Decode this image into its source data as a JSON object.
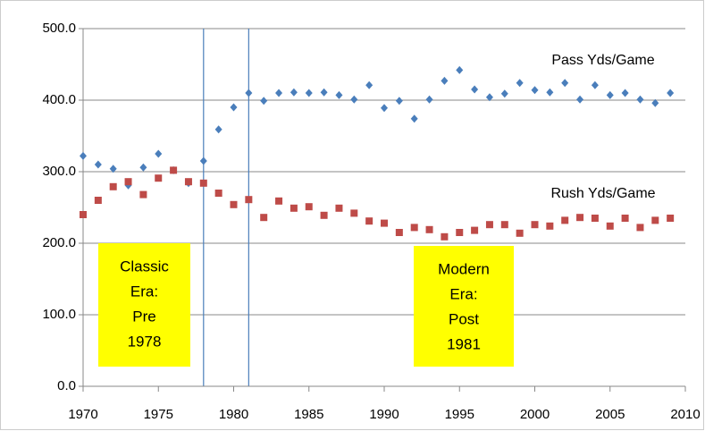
{
  "chart_data": {
    "type": "scatter",
    "x": [
      1970,
      1971,
      1972,
      1973,
      1974,
      1975,
      1976,
      1977,
      1978,
      1979,
      1980,
      1981,
      1982,
      1983,
      1984,
      1985,
      1986,
      1987,
      1988,
      1989,
      1990,
      1991,
      1992,
      1993,
      1994,
      1995,
      1996,
      1997,
      1998,
      1999,
      2000,
      2001,
      2002,
      2003,
      2004,
      2005,
      2006,
      2007,
      2008,
      2009
    ],
    "series": [
      {
        "name": "Pass Yds/Game",
        "color": "#4a7ebb",
        "marker": "diamond",
        "values": [
          322,
          310,
          304,
          281,
          306,
          325,
          302,
          284,
          315,
          359,
          390,
          410,
          399,
          410,
          411,
          410,
          411,
          407,
          401,
          421,
          389,
          399,
          374,
          401,
          427,
          442,
          415,
          404,
          409,
          424,
          414,
          411,
          424,
          401,
          421,
          407,
          410,
          401,
          396,
          410
        ]
      },
      {
        "name": "Rush Yds/Game",
        "color": "#be4b48",
        "marker": "square",
        "values": [
          240,
          260,
          279,
          286,
          268,
          291,
          302,
          286,
          284,
          270,
          254,
          261,
          236,
          259,
          249,
          251,
          239,
          249,
          242,
          231,
          228,
          215,
          222,
          219,
          209,
          215,
          218,
          226,
          226,
          214,
          226,
          224,
          232,
          236,
          235,
          224,
          235,
          222,
          232,
          235
        ]
      }
    ],
    "xlim": [
      1970,
      2010
    ],
    "xticks": [
      1970,
      1975,
      1980,
      1985,
      1990,
      1995,
      2000,
      2005,
      2010
    ],
    "ylim": [
      0,
      500
    ],
    "yticks": [
      {
        "value": 0,
        "label": "0.0"
      },
      {
        "value": 100,
        "label": "100.0"
      },
      {
        "value": 200,
        "label": "200.0"
      },
      {
        "value": 300,
        "label": "300.0"
      },
      {
        "value": 400,
        "label": "400.0"
      },
      {
        "value": 500,
        "label": "500.0"
      }
    ],
    "grid": true,
    "vlines": [
      1978,
      1981
    ],
    "annotations": [
      {
        "lines": [
          "Classic",
          "Era:",
          "Pre",
          "1978"
        ],
        "color": "#ffff00"
      },
      {
        "lines": [
          "Modern",
          "Era:",
          "Post",
          "1981"
        ],
        "color": "#ffff00"
      }
    ]
  }
}
